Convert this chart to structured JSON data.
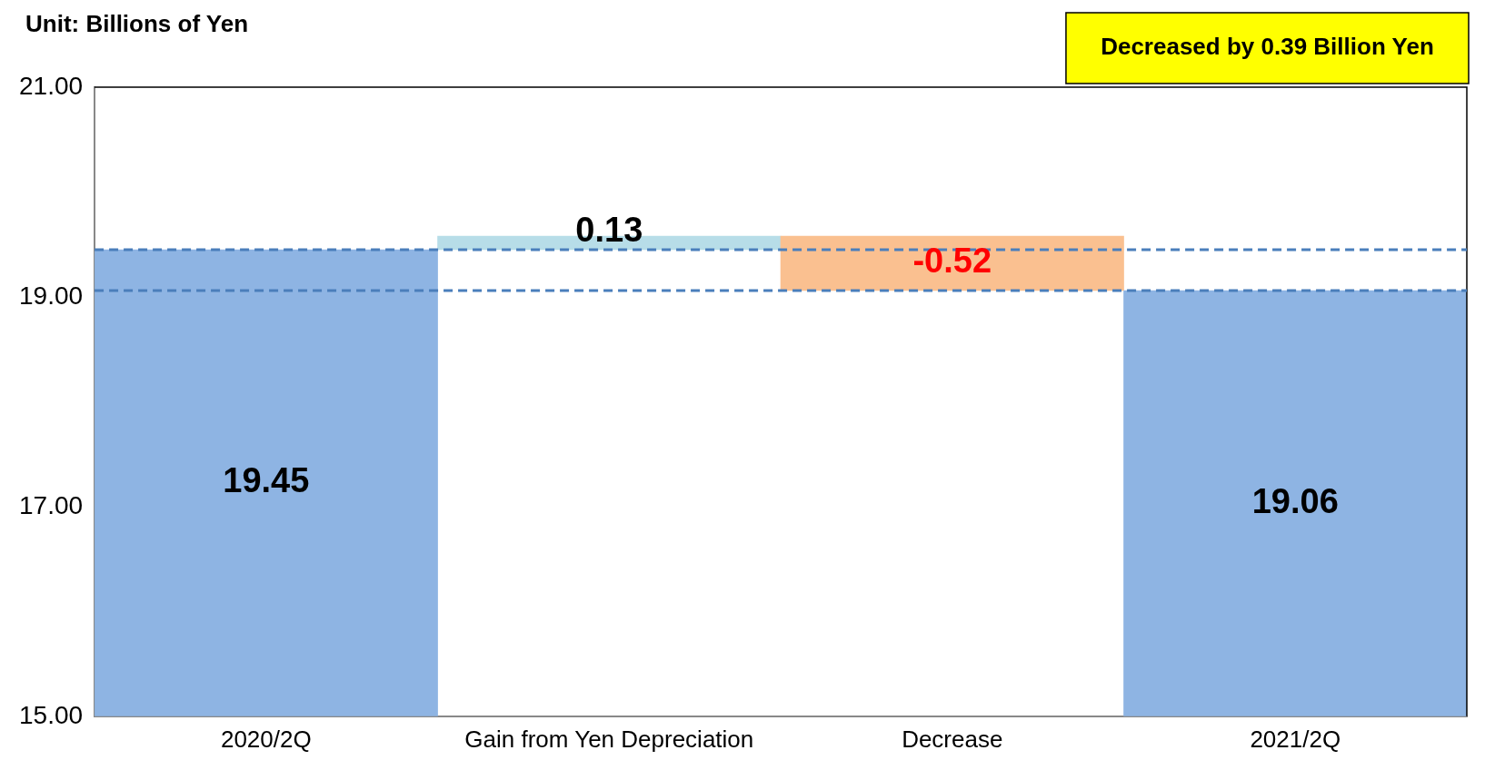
{
  "chart_data": {
    "type": "bar",
    "categories": [
      "2020/2Q",
      "Gain from Yen Depreciation",
      "Decrease",
      "2021/2Q"
    ],
    "values": [
      19.45,
      0.13,
      -0.52,
      19.06
    ],
    "base": [
      null,
      19.45,
      19.58,
      null
    ],
    "colors": [
      "#8eb4e3",
      "#b7dde8",
      "#fac090",
      "#8eb4e3"
    ],
    "data_labels": true,
    "ylim": [
      15,
      21
    ],
    "yticks": [
      {
        "value": 15,
        "label": "15.00"
      },
      {
        "value": 17,
        "label": "17.00"
      },
      {
        "value": 19,
        "label": "19.00"
      },
      {
        "value": 21,
        "label": "21.00"
      }
    ],
    "grid": false,
    "legend": false,
    "ref_lines": [
      {
        "axis": "y",
        "value": 19.45,
        "color": "#4a7ebb",
        "line_style": "dashed"
      },
      {
        "axis": "y",
        "value": 19.06,
        "color": "#4a7ebb",
        "line_style": "dashed"
      }
    ],
    "annotations": [
      "Unit: Billions of Yen",
      "Decreased by 0.39 Billion Yen"
    ]
  }
}
